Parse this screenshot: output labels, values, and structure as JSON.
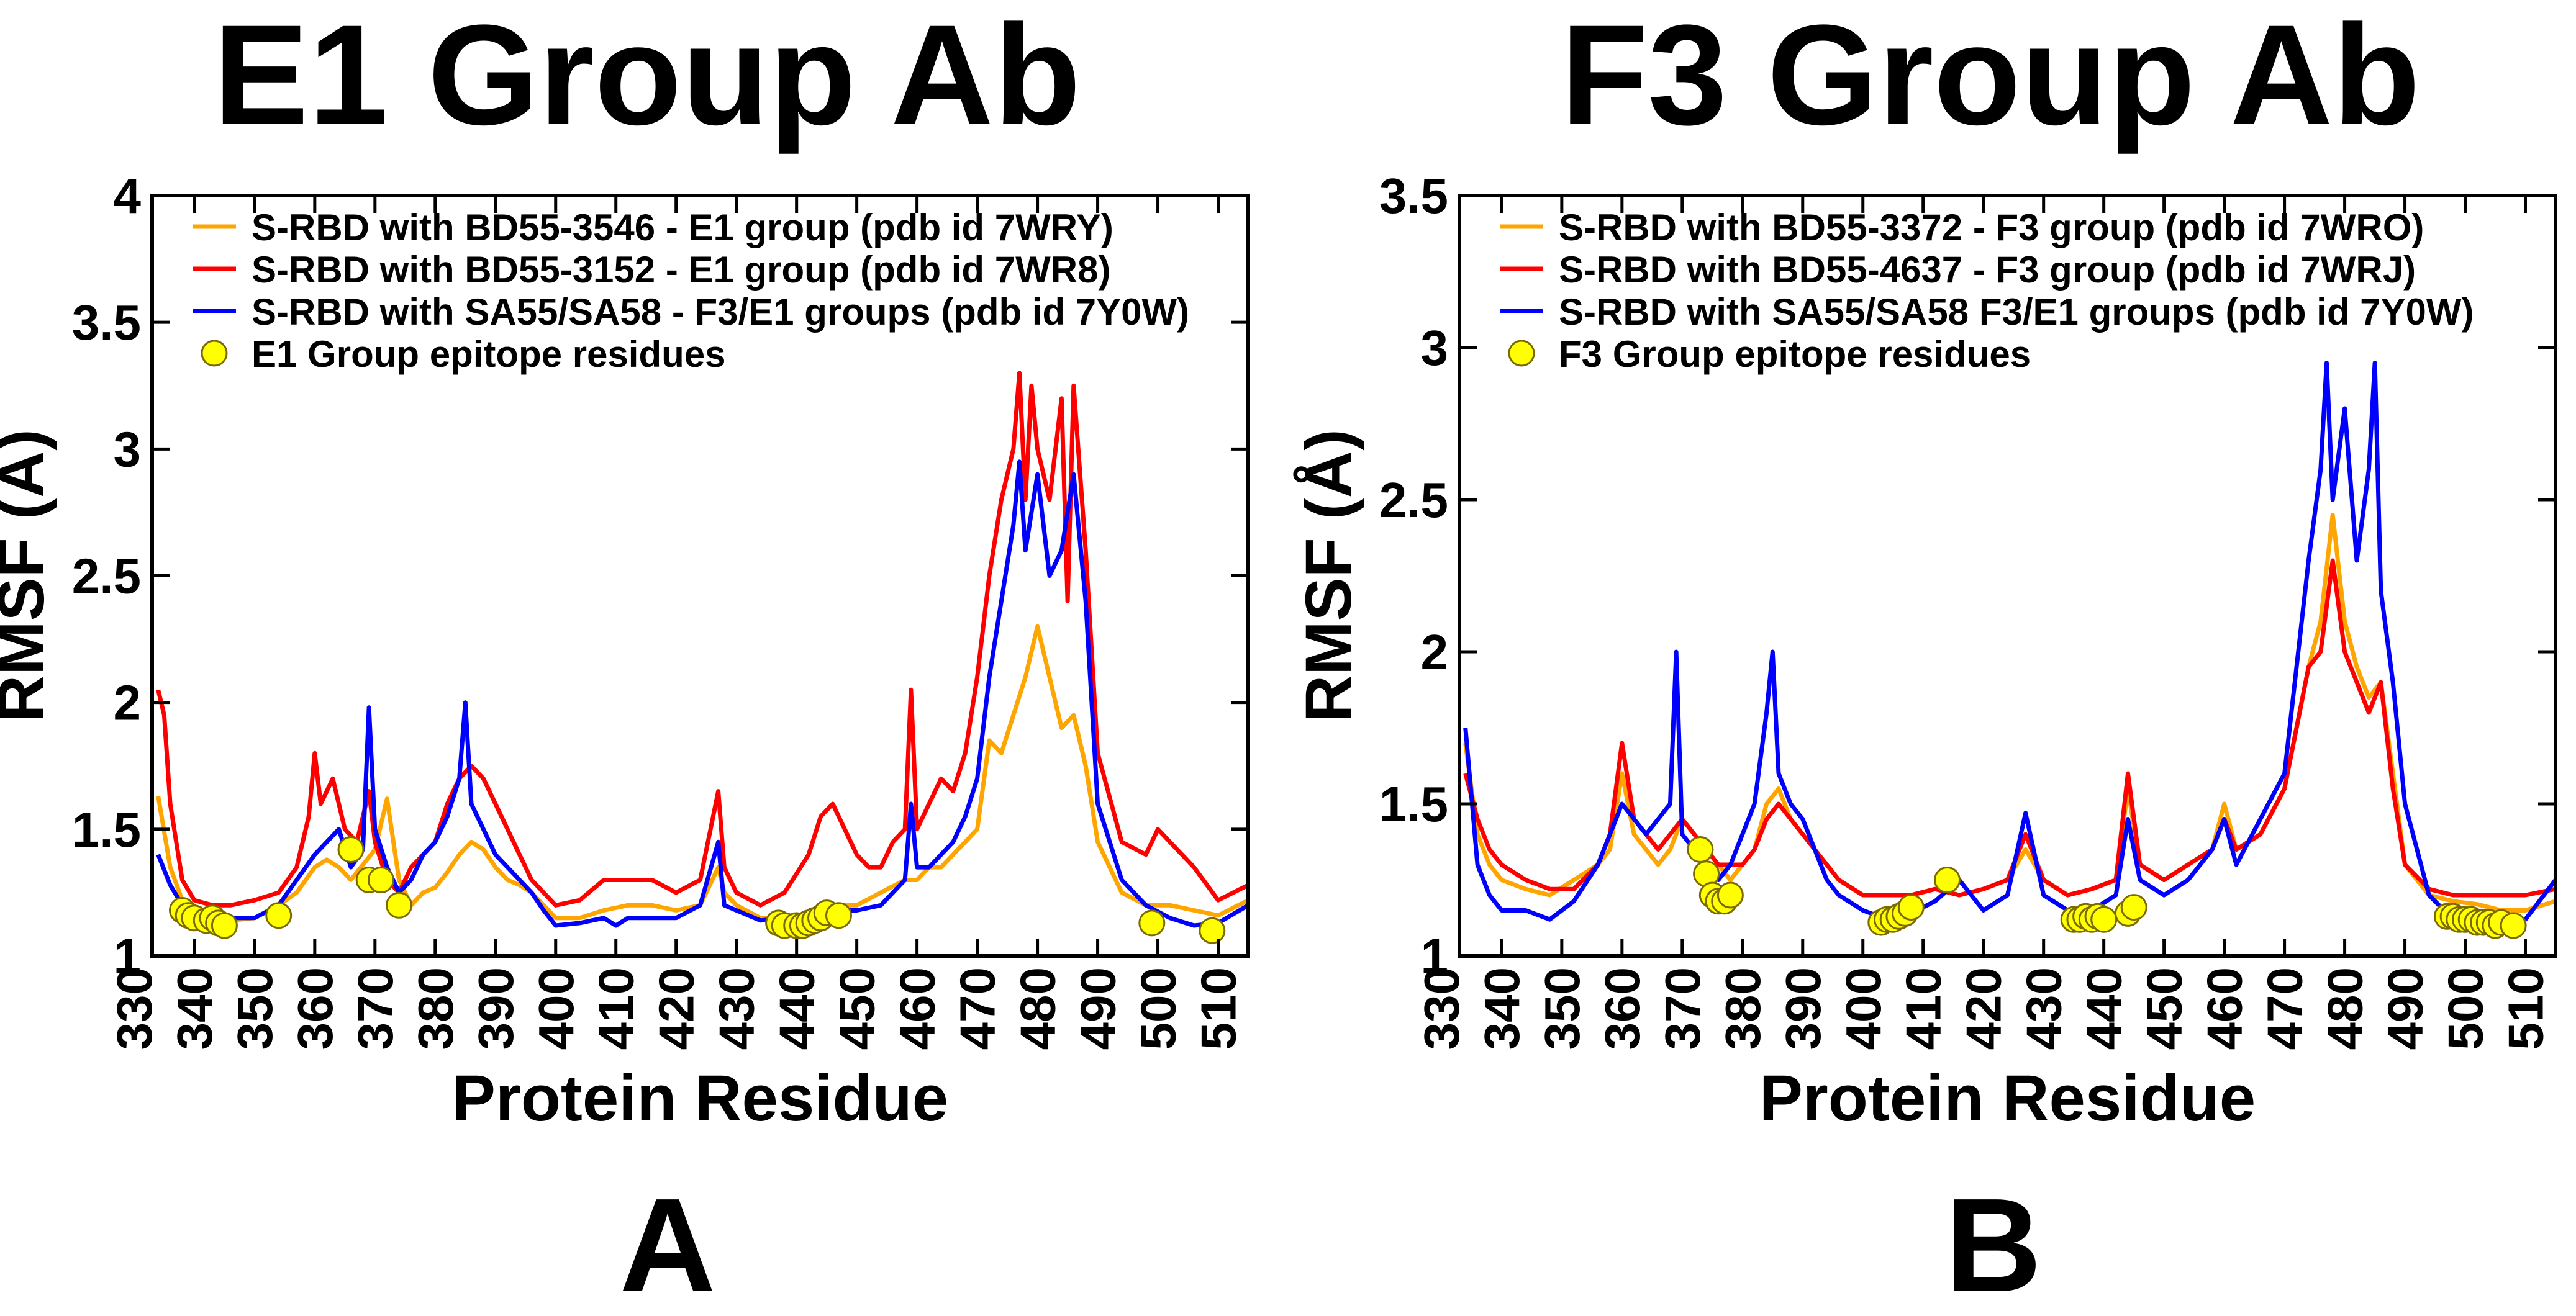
{
  "figure": {
    "panels": [
      {
        "title": "E1 Group Ab",
        "letter": "A",
        "xlabel": "Protein Residue",
        "ylabel": "RMSF (Å)"
      },
      {
        "title": "F3 Group Ab",
        "letter": "B",
        "xlabel": "Protein Residue",
        "ylabel": "RMSF (Å)"
      }
    ]
  },
  "chart_data": [
    {
      "type": "line",
      "title": "E1 Group Ab",
      "panel_label": "A",
      "xlabel": "Protein Residue",
      "ylabel": "RMSF (Å)",
      "xlim": [
        333,
        515
      ],
      "ylim": [
        1,
        4
      ],
      "x_ticks": [
        330,
        340,
        350,
        360,
        370,
        380,
        390,
        400,
        410,
        420,
        430,
        440,
        450,
        460,
        470,
        480,
        490,
        500,
        510
      ],
      "y_ticks": [
        1,
        1.5,
        2,
        2.5,
        3,
        3.5,
        4
      ],
      "y_tick_labels": [
        "1",
        "1.5",
        "2",
        "2.5",
        "3",
        "3.5",
        "4"
      ],
      "legend_position": "top-left",
      "series": [
        {
          "name": "S-RBD with BD55-3546 - E1 group (pdb id 7WRY)",
          "color": "#ffa500",
          "x": [
            334,
            336,
            338,
            340,
            343,
            346,
            350,
            354,
            357,
            360,
            362,
            364,
            366,
            368,
            370,
            372,
            374,
            376,
            378,
            380,
            382,
            384,
            386,
            388,
            390,
            392,
            394,
            396,
            398,
            400,
            404,
            408,
            412,
            416,
            420,
            424,
            427,
            428,
            430,
            434,
            438,
            442,
            446,
            450,
            454,
            458,
            460,
            462,
            464,
            466,
            468,
            470,
            472,
            474,
            476,
            478,
            480,
            482,
            484,
            486,
            488,
            490,
            494,
            498,
            502,
            506,
            510,
            515
          ],
          "values": [
            1.63,
            1.35,
            1.22,
            1.16,
            1.16,
            1.14,
            1.15,
            1.2,
            1.25,
            1.35,
            1.38,
            1.35,
            1.3,
            1.36,
            1.42,
            1.62,
            1.3,
            1.2,
            1.25,
            1.27,
            1.33,
            1.4,
            1.45,
            1.42,
            1.35,
            1.3,
            1.28,
            1.25,
            1.2,
            1.15,
            1.15,
            1.18,
            1.2,
            1.2,
            1.18,
            1.2,
            1.35,
            1.25,
            1.2,
            1.15,
            1.15,
            1.17,
            1.2,
            1.2,
            1.25,
            1.3,
            1.3,
            1.35,
            1.35,
            1.4,
            1.45,
            1.5,
            1.85,
            1.8,
            1.95,
            2.1,
            2.3,
            2.1,
            1.9,
            1.95,
            1.75,
            1.45,
            1.25,
            1.2,
            1.2,
            1.18,
            1.16,
            1.22
          ]
        },
        {
          "name": "S-RBD with BD55-3152 - E1 group (pdb id 7WR8)",
          "color": "#ff0000",
          "x": [
            334,
            335,
            336,
            338,
            340,
            343,
            346,
            350,
            354,
            357,
            359,
            360,
            361,
            363,
            365,
            367,
            369,
            370,
            372,
            374,
            376,
            378,
            380,
            382,
            384,
            386,
            388,
            390,
            392,
            394,
            396,
            398,
            400,
            404,
            408,
            412,
            416,
            420,
            424,
            427,
            428,
            430,
            434,
            438,
            442,
            444,
            446,
            448,
            450,
            452,
            454,
            456,
            458,
            459,
            460,
            462,
            464,
            466,
            468,
            470,
            472,
            474,
            476,
            477,
            478,
            479,
            480,
            482,
            484,
            485,
            486,
            488,
            490,
            494,
            498,
            500,
            502,
            506,
            510,
            515
          ],
          "values": [
            2.05,
            1.95,
            1.6,
            1.3,
            1.22,
            1.2,
            1.2,
            1.22,
            1.25,
            1.35,
            1.55,
            1.8,
            1.6,
            1.7,
            1.5,
            1.45,
            1.65,
            1.45,
            1.3,
            1.25,
            1.35,
            1.4,
            1.45,
            1.6,
            1.7,
            1.75,
            1.7,
            1.6,
            1.5,
            1.4,
            1.3,
            1.25,
            1.2,
            1.22,
            1.3,
            1.3,
            1.3,
            1.25,
            1.3,
            1.65,
            1.35,
            1.25,
            1.2,
            1.25,
            1.4,
            1.55,
            1.6,
            1.5,
            1.4,
            1.35,
            1.35,
            1.45,
            1.5,
            2.05,
            1.5,
            1.6,
            1.7,
            1.65,
            1.8,
            2.1,
            2.5,
            2.8,
            3.0,
            3.3,
            2.8,
            3.25,
            3.0,
            2.8,
            3.2,
            2.4,
            3.25,
            2.6,
            1.8,
            1.45,
            1.4,
            1.5,
            1.45,
            1.35,
            1.22,
            1.28
          ]
        },
        {
          "name": "S-RBD with SA55/SA58 - F3/E1 groups (pdb id 7Y0W)",
          "color": "#0000ff",
          "x": [
            334,
            336,
            338,
            340,
            343,
            346,
            350,
            354,
            357,
            360,
            362,
            364,
            366,
            368,
            369,
            370,
            372,
            374,
            376,
            378,
            380,
            382,
            384,
            385,
            386,
            388,
            390,
            392,
            394,
            396,
            398,
            400,
            404,
            408,
            410,
            412,
            416,
            420,
            424,
            427,
            428,
            430,
            434,
            438,
            442,
            446,
            450,
            454,
            458,
            459,
            460,
            462,
            464,
            466,
            468,
            470,
            472,
            474,
            476,
            477,
            478,
            480,
            482,
            484,
            486,
            488,
            490,
            494,
            498,
            502,
            506,
            510,
            515
          ],
          "values": [
            1.4,
            1.28,
            1.2,
            1.17,
            1.15,
            1.15,
            1.15,
            1.2,
            1.3,
            1.4,
            1.45,
            1.5,
            1.35,
            1.42,
            1.98,
            1.5,
            1.35,
            1.25,
            1.3,
            1.4,
            1.45,
            1.55,
            1.7,
            2.0,
            1.6,
            1.5,
            1.4,
            1.35,
            1.3,
            1.25,
            1.18,
            1.12,
            1.13,
            1.15,
            1.12,
            1.15,
            1.15,
            1.15,
            1.2,
            1.45,
            1.2,
            1.18,
            1.14,
            1.15,
            1.15,
            1.18,
            1.18,
            1.2,
            1.3,
            1.6,
            1.35,
            1.35,
            1.4,
            1.45,
            1.55,
            1.7,
            2.1,
            2.4,
            2.7,
            2.95,
            2.6,
            2.9,
            2.5,
            2.6,
            2.9,
            2.4,
            1.6,
            1.3,
            1.2,
            1.15,
            1.12,
            1.13,
            1.2
          ]
        }
      ],
      "epitope_points": {
        "name": "E1 Group epitope residues",
        "color": "#ffff00",
        "x": [
          338,
          339,
          340,
          342,
          343,
          344,
          345,
          354,
          366,
          369,
          371,
          374,
          437,
          438,
          440,
          441,
          442,
          443,
          444,
          445,
          447,
          499,
          509
        ],
        "values": [
          1.18,
          1.16,
          1.15,
          1.14,
          1.15,
          1.13,
          1.12,
          1.16,
          1.42,
          1.3,
          1.3,
          1.2,
          1.13,
          1.12,
          1.12,
          1.12,
          1.13,
          1.14,
          1.15,
          1.17,
          1.16,
          1.13,
          1.1
        ]
      }
    },
    {
      "type": "line",
      "title": "F3 Group Ab",
      "panel_label": "B",
      "xlabel": "Protein Residue",
      "ylabel": "RMSF (Å)",
      "xlim": [
        333,
        515
      ],
      "ylim": [
        1,
        3.5
      ],
      "x_ticks": [
        330,
        340,
        350,
        360,
        370,
        380,
        390,
        400,
        410,
        420,
        430,
        440,
        450,
        460,
        470,
        480,
        490,
        500,
        510
      ],
      "y_ticks": [
        1,
        1.5,
        2,
        2.5,
        3,
        3.5
      ],
      "y_tick_labels": [
        "1",
        "1.5",
        "2",
        "2.5",
        "3",
        "3.5"
      ],
      "legend_position": "top-left",
      "series": [
        {
          "name": "S-RBD with BD55-3372 - F3  group (pdb id 7WRO)",
          "color": "#ffa500",
          "x": [
            334,
            336,
            338,
            340,
            344,
            348,
            352,
            356,
            358,
            360,
            362,
            364,
            366,
            368,
            370,
            372,
            374,
            376,
            378,
            380,
            382,
            384,
            386,
            388,
            390,
            392,
            394,
            396,
            400,
            404,
            408,
            412,
            416,
            420,
            424,
            427,
            430,
            434,
            438,
            442,
            444,
            446,
            450,
            454,
            458,
            460,
            462,
            466,
            470,
            472,
            474,
            476,
            478,
            480,
            482,
            484,
            486,
            488,
            490,
            494,
            498,
            502,
            506,
            510,
            515
          ],
          "values": [
            1.7,
            1.4,
            1.3,
            1.25,
            1.22,
            1.2,
            1.25,
            1.3,
            1.35,
            1.6,
            1.4,
            1.35,
            1.3,
            1.35,
            1.45,
            1.4,
            1.35,
            1.3,
            1.25,
            1.3,
            1.35,
            1.5,
            1.55,
            1.45,
            1.4,
            1.35,
            1.3,
            1.25,
            1.2,
            1.2,
            1.2,
            1.22,
            1.2,
            1.22,
            1.25,
            1.35,
            1.25,
            1.2,
            1.22,
            1.25,
            1.55,
            1.3,
            1.25,
            1.3,
            1.35,
            1.5,
            1.35,
            1.4,
            1.55,
            1.75,
            1.95,
            2.1,
            2.45,
            2.1,
            1.95,
            1.85,
            1.9,
            1.6,
            1.3,
            1.2,
            1.18,
            1.17,
            1.15,
            1.15,
            1.18
          ]
        },
        {
          "name": "S-RBD with BD55-4637 - F3 group (pdb id 7WRJ)",
          "color": "#ff0000",
          "x": [
            334,
            336,
            338,
            340,
            344,
            348,
            352,
            356,
            358,
            360,
            362,
            364,
            366,
            368,
            370,
            372,
            374,
            376,
            378,
            380,
            382,
            384,
            386,
            388,
            390,
            392,
            394,
            396,
            400,
            404,
            408,
            412,
            416,
            420,
            424,
            427,
            430,
            434,
            438,
            442,
            444,
            446,
            450,
            454,
            458,
            460,
            462,
            466,
            470,
            472,
            474,
            476,
            478,
            480,
            482,
            484,
            486,
            488,
            490,
            494,
            498,
            502,
            506,
            510,
            515
          ],
          "values": [
            1.6,
            1.45,
            1.35,
            1.3,
            1.25,
            1.22,
            1.22,
            1.3,
            1.4,
            1.7,
            1.45,
            1.4,
            1.35,
            1.4,
            1.45,
            1.4,
            1.35,
            1.3,
            1.3,
            1.3,
            1.35,
            1.45,
            1.5,
            1.45,
            1.4,
            1.35,
            1.3,
            1.25,
            1.2,
            1.2,
            1.2,
            1.22,
            1.2,
            1.22,
            1.25,
            1.4,
            1.25,
            1.2,
            1.22,
            1.25,
            1.6,
            1.3,
            1.25,
            1.3,
            1.35,
            1.45,
            1.35,
            1.4,
            1.55,
            1.75,
            1.95,
            2.0,
            2.3,
            2.0,
            1.9,
            1.8,
            1.9,
            1.55,
            1.3,
            1.22,
            1.2,
            1.2,
            1.2,
            1.2,
            1.22
          ]
        },
        {
          "name": "S-RBD with SA55/SA58  F3/E1 groups (pdb id 7Y0W)",
          "color": "#0000ff",
          "x": [
            334,
            336,
            338,
            340,
            344,
            348,
            352,
            356,
            358,
            360,
            362,
            364,
            366,
            368,
            369,
            370,
            372,
            374,
            376,
            378,
            380,
            382,
            384,
            385,
            386,
            388,
            390,
            392,
            394,
            396,
            400,
            404,
            408,
            412,
            416,
            420,
            424,
            427,
            430,
            434,
            438,
            442,
            444,
            446,
            450,
            454,
            458,
            460,
            462,
            466,
            470,
            472,
            474,
            476,
            477,
            478,
            480,
            482,
            484,
            485,
            486,
            488,
            490,
            494,
            498,
            502,
            506,
            510,
            515
          ],
          "values": [
            1.75,
            1.3,
            1.2,
            1.15,
            1.15,
            1.12,
            1.18,
            1.3,
            1.4,
            1.5,
            1.45,
            1.4,
            1.45,
            1.5,
            2.0,
            1.4,
            1.35,
            1.3,
            1.25,
            1.3,
            1.4,
            1.5,
            1.8,
            2.0,
            1.6,
            1.5,
            1.45,
            1.35,
            1.25,
            1.2,
            1.15,
            1.12,
            1.14,
            1.18,
            1.25,
            1.15,
            1.2,
            1.47,
            1.2,
            1.15,
            1.15,
            1.2,
            1.45,
            1.25,
            1.2,
            1.25,
            1.35,
            1.45,
            1.3,
            1.45,
            1.6,
            1.95,
            2.3,
            2.6,
            2.95,
            2.5,
            2.8,
            2.3,
            2.6,
            2.95,
            2.2,
            1.9,
            1.5,
            1.2,
            1.12,
            1.1,
            1.1,
            1.12,
            1.25
          ]
        }
      ],
      "epitope_points": {
        "name": "F3 Group epitope residues",
        "color": "#ffff00",
        "x": [
          373,
          374,
          375,
          376,
          377,
          378,
          403,
          404,
          405,
          406,
          407,
          408,
          414,
          435,
          436,
          437,
          438,
          439,
          440,
          444,
          445,
          497,
          498,
          499,
          500,
          501,
          502,
          503,
          504,
          505,
          506,
          508
        ],
        "values": [
          1.35,
          1.27,
          1.2,
          1.18,
          1.18,
          1.2,
          1.11,
          1.12,
          1.12,
          1.13,
          1.14,
          1.16,
          1.25,
          1.12,
          1.12,
          1.13,
          1.12,
          1.13,
          1.12,
          1.14,
          1.16,
          1.13,
          1.13,
          1.12,
          1.12,
          1.12,
          1.11,
          1.11,
          1.11,
          1.1,
          1.11,
          1.1
        ]
      }
    }
  ]
}
